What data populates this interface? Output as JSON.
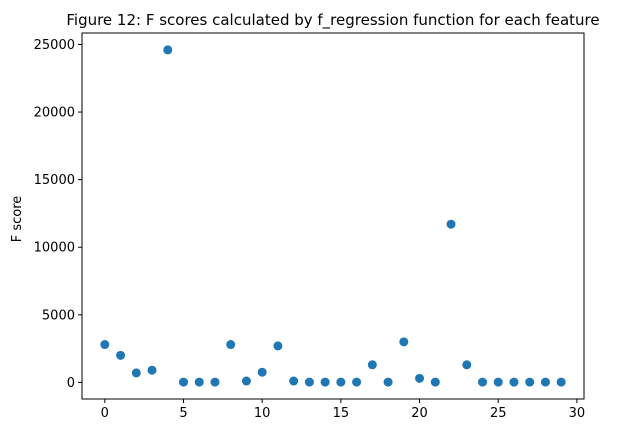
{
  "chart_data": {
    "type": "scatter",
    "title": "Figure 12: F scores calculated by f_regression function for each feature",
    "xlabel": "",
    "ylabel": "F score",
    "xlim": [
      -1.45,
      30.45
    ],
    "ylim": [
      -1230,
      25850
    ],
    "xticks": [
      0,
      5,
      10,
      15,
      20,
      25,
      30
    ],
    "yticks": [
      0,
      5000,
      10000,
      15000,
      20000,
      25000
    ],
    "grid": false,
    "marker_color": "#1f77b4",
    "x": [
      0,
      1,
      2,
      3,
      4,
      5,
      6,
      7,
      8,
      9,
      10,
      11,
      12,
      13,
      14,
      15,
      16,
      17,
      18,
      19,
      20,
      21,
      22,
      23,
      24,
      25,
      26,
      27,
      28,
      29
    ],
    "y": [
      2800,
      2000,
      700,
      900,
      24600,
      20,
      20,
      20,
      2800,
      100,
      750,
      2700,
      100,
      20,
      20,
      20,
      20,
      1300,
      20,
      3000,
      300,
      20,
      11700,
      1300,
      20,
      20,
      20,
      20,
      20,
      20
    ]
  }
}
